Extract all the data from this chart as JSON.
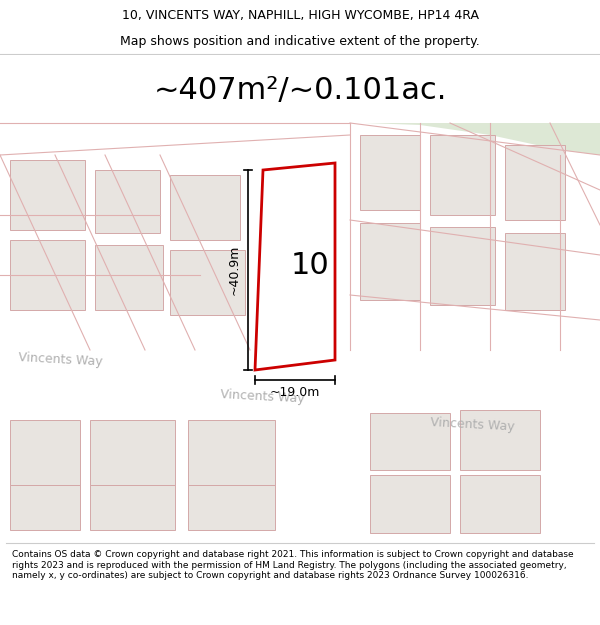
{
  "title_line1": "10, VINCENTS WAY, NAPHILL, HIGH WYCOMBE, HP14 4RA",
  "title_line2": "Map shows position and indicative extent of the property.",
  "area_label": "~407m²/~0.101ac.",
  "property_number": "10",
  "dim_height": "~40.9m",
  "dim_width": "~19.0m",
  "footer_text": "Contains OS data © Crown copyright and database right 2021. This information is subject to Crown copyright and database rights 2023 and is reproduced with the permission of HM Land Registry. The polygons (including the associated geometry, namely x, y co-ordinates) are subject to Crown copyright and database rights 2023 Ordnance Survey 100026316.",
  "map_bg": "#f2f0eb",
  "bg_green_color": "#dde8d5",
  "building_fill": "#e8e4e0",
  "building_stroke": "#d4a8a8",
  "cad_line_color": "#e0b0b0",
  "highlight_stroke": "#cc0000",
  "highlight_fill": "#ffffff",
  "road_fill": "#ffffff",
  "dim_line_color": "#000000",
  "street_label_color": "#b0b0b0",
  "title_fontsize": 9,
  "footer_fontsize": 6.5,
  "area_fontsize": 22,
  "property_number_fontsize": 22,
  "dim_fontsize": 9,
  "street_fontsize": 9
}
